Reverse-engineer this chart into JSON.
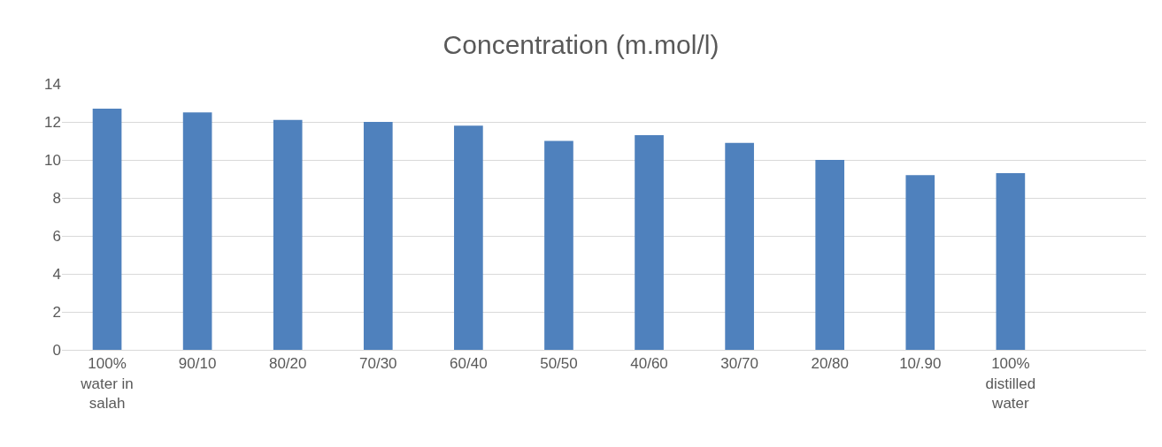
{
  "chart_data": {
    "type": "bar",
    "title": "Concentration (m.mol/l)",
    "categories": [
      "100% water in salah",
      "90/10",
      "80/20",
      "70/30",
      "60/40",
      "50/50",
      "40/60",
      "30/70",
      "20/80",
      "10/.90",
      "100% distilled water",
      null
    ],
    "values": [
      12.7,
      12.5,
      12.1,
      12.0,
      11.8,
      11.0,
      11.3,
      10.9,
      10.0,
      9.2,
      9.3,
      null
    ],
    "color": "#4f81bd",
    "ylim": [
      0,
      14
    ],
    "yticks": [
      0,
      2,
      4,
      6,
      8,
      10,
      12,
      14
    ],
    "grid": "y",
    "legend": false
  }
}
